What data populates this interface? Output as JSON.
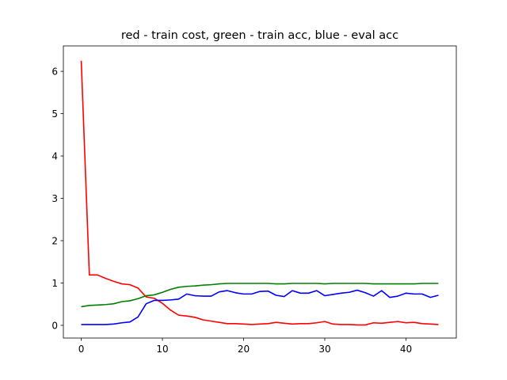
{
  "chart_data": {
    "type": "line",
    "title": "red - train cost, green - train acc, blue - eval acc",
    "xlabel": "",
    "ylabel": "",
    "xlim": [
      -2.2,
      46.2
    ],
    "ylim": [
      -0.3,
      6.6
    ],
    "xticks": [
      0,
      10,
      20,
      30,
      40
    ],
    "yticks": [
      0,
      1,
      2,
      3,
      4,
      5,
      6
    ],
    "grid": false,
    "x": [
      0,
      1,
      2,
      3,
      4,
      5,
      6,
      7,
      8,
      9,
      10,
      11,
      12,
      13,
      14,
      15,
      16,
      17,
      18,
      19,
      20,
      21,
      22,
      23,
      24,
      25,
      26,
      27,
      28,
      29,
      30,
      31,
      32,
      33,
      34,
      35,
      36,
      37,
      38,
      39,
      40,
      41,
      42,
      43,
      44
    ],
    "series": [
      {
        "color": "#ff0000",
        "values": [
          6.25,
          1.19,
          1.19,
          1.11,
          1.04,
          0.98,
          0.96,
          0.88,
          0.67,
          0.64,
          0.52,
          0.36,
          0.24,
          0.22,
          0.19,
          0.13,
          0.1,
          0.07,
          0.04,
          0.04,
          0.03,
          0.02,
          0.03,
          0.04,
          0.07,
          0.05,
          0.03,
          0.04,
          0.04,
          0.06,
          0.09,
          0.03,
          0.02,
          0.02,
          0.01,
          0.01,
          0.06,
          0.05,
          0.07,
          0.09,
          0.06,
          0.07,
          0.04,
          0.03,
          0.02
        ]
      },
      {
        "color": "#008000",
        "values": [
          0.44,
          0.47,
          0.48,
          0.49,
          0.51,
          0.56,
          0.58,
          0.63,
          0.7,
          0.72,
          0.78,
          0.85,
          0.9,
          0.92,
          0.93,
          0.95,
          0.96,
          0.98,
          0.99,
          0.99,
          0.99,
          0.99,
          0.99,
          0.99,
          0.98,
          0.98,
          0.99,
          0.99,
          0.99,
          0.99,
          0.98,
          0.99,
          0.99,
          0.99,
          0.99,
          0.99,
          0.98,
          0.98,
          0.98,
          0.98,
          0.98,
          0.98,
          0.99,
          0.99,
          0.99
        ]
      },
      {
        "color": "#0000ff",
        "values": [
          0.02,
          0.02,
          0.02,
          0.02,
          0.03,
          0.06,
          0.08,
          0.2,
          0.51,
          0.59,
          0.59,
          0.6,
          0.62,
          0.74,
          0.7,
          0.69,
          0.69,
          0.79,
          0.82,
          0.77,
          0.74,
          0.74,
          0.8,
          0.81,
          0.71,
          0.68,
          0.82,
          0.76,
          0.76,
          0.82,
          0.7,
          0.73,
          0.76,
          0.78,
          0.83,
          0.77,
          0.69,
          0.82,
          0.66,
          0.69,
          0.76,
          0.74,
          0.74,
          0.66,
          0.71
        ]
      }
    ]
  }
}
